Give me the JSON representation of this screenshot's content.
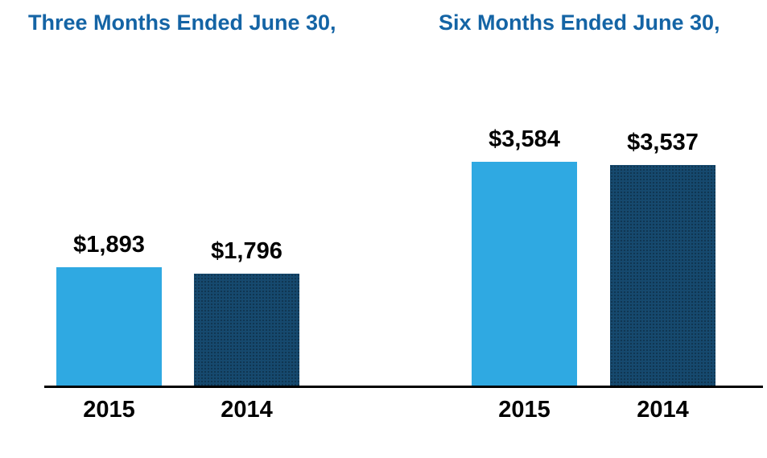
{
  "chart_data": {
    "type": "bar",
    "groups": [
      {
        "title": "Three Months Ended June 30,",
        "categories": [
          "2015",
          "2014"
        ],
        "values": [
          1893,
          1796
        ],
        "value_labels": [
          "$1,893",
          "$1,796"
        ]
      },
      {
        "title": "Six Months Ended June 30,",
        "categories": [
          "2015",
          "2014"
        ],
        "values": [
          3584,
          3537
        ],
        "value_labels": [
          "$3,584",
          "$3,537"
        ]
      }
    ],
    "series_colors": {
      "2015": "#2FA9E2",
      "2014": "#16496E"
    },
    "title_color": "#1464A5",
    "axis_color": "#000000",
    "value_label_color": "#000000",
    "year_label_color": "#000000",
    "ylim": [
      0,
      3900
    ],
    "grid": false,
    "legend": "none"
  }
}
